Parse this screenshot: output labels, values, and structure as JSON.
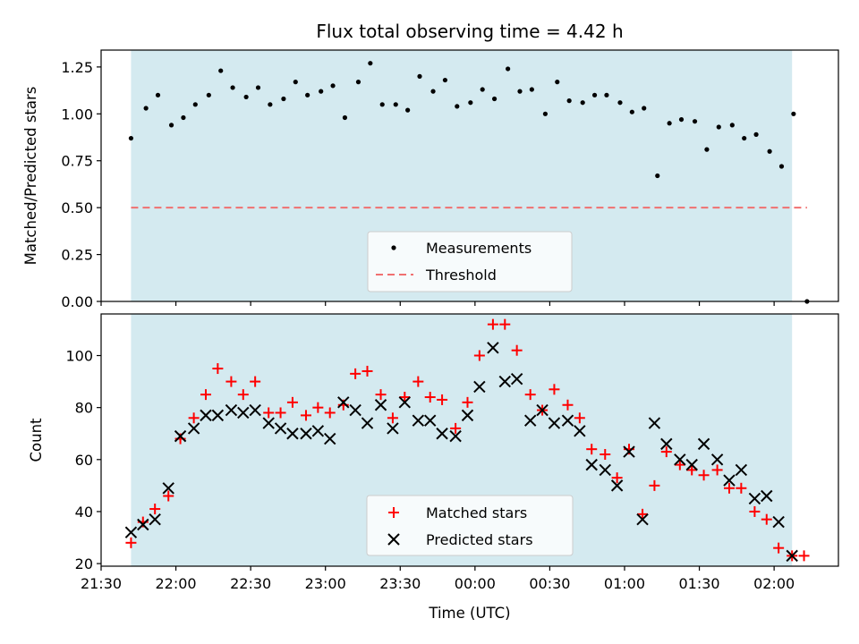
{
  "chart_data": [
    {
      "type": "scatter",
      "title": "Flux total observing time = 4.42 h",
      "ylabel": "Matched/Predicted stars",
      "ylim": [
        0,
        1.34
      ],
      "yticks": [
        "0.00",
        "0.25",
        "0.50",
        "0.75",
        "1.00",
        "1.25"
      ],
      "x_unit": "hours after 21:30 UTC",
      "observing_window": [
        0.2,
        4.62
      ],
      "window_color": "#d4eaf0",
      "threshold": 0.5,
      "series": [
        {
          "name": "Measurements",
          "color": "#000000",
          "marker": "dot",
          "x": [
            0.2,
            0.3,
            0.38,
            0.47,
            0.55,
            0.63,
            0.72,
            0.8,
            0.88,
            0.97,
            1.05,
            1.13,
            1.22,
            1.3,
            1.38,
            1.47,
            1.55,
            1.63,
            1.72,
            1.8,
            1.88,
            1.97,
            2.05,
            2.13,
            2.22,
            2.3,
            2.38,
            2.47,
            2.55,
            2.63,
            2.72,
            2.8,
            2.88,
            2.97,
            3.05,
            3.13,
            3.22,
            3.3,
            3.38,
            3.47,
            3.55,
            3.63,
            3.72,
            3.8,
            3.88,
            3.97,
            4.05,
            4.13,
            4.22,
            4.3,
            4.38,
            4.47,
            4.55,
            4.63,
            4.72
          ],
          "y": [
            0.87,
            1.03,
            1.1,
            0.94,
            0.98,
            1.05,
            1.1,
            1.23,
            1.14,
            1.09,
            1.14,
            1.05,
            1.08,
            1.17,
            1.1,
            1.12,
            1.15,
            0.98,
            1.17,
            1.27,
            1.05,
            1.05,
            1.02,
            1.2,
            1.12,
            1.18,
            1.04,
            1.06,
            1.13,
            1.08,
            1.24,
            1.12,
            1.13,
            1.0,
            1.17,
            1.07,
            1.06,
            1.1,
            1.1,
            1.06,
            1.01,
            1.03,
            0.67,
            0.95,
            0.97,
            0.96,
            0.81,
            0.93,
            0.94,
            0.87,
            0.89,
            0.8,
            0.72,
            1.0,
            0.0
          ]
        }
      ],
      "threshold_series": {
        "name": "Threshold",
        "color": "#f07070",
        "value": 0.5,
        "x_range": [
          0.2,
          4.72
        ]
      },
      "legend": {
        "placement": "lower-center",
        "entries": [
          "Measurements",
          "Threshold"
        ]
      }
    },
    {
      "type": "scatter",
      "xlabel": "Time (UTC)",
      "ylabel": "Count",
      "ylim": [
        19,
        116
      ],
      "yticks": [
        "20",
        "40",
        "60",
        "80",
        "100"
      ],
      "xticks": [
        "21:30",
        "22:00",
        "22:30",
        "23:00",
        "23:30",
        "00:00",
        "00:30",
        "01:00",
        "01:30",
        "02:00"
      ],
      "x_unit": "hours after 21:30 UTC",
      "observing_window": [
        0.2,
        4.62
      ],
      "series": [
        {
          "name": "Matched stars",
          "color": "#ff0000",
          "marker": "plus",
          "x": [
            0.2,
            0.28,
            0.36,
            0.45,
            0.53,
            0.62,
            0.7,
            0.78,
            0.87,
            0.95,
            1.03,
            1.12,
            1.2,
            1.28,
            1.37,
            1.45,
            1.53,
            1.62,
            1.7,
            1.78,
            1.87,
            1.95,
            2.03,
            2.12,
            2.2,
            2.28,
            2.37,
            2.45,
            2.53,
            2.62,
            2.7,
            2.78,
            2.87,
            2.95,
            3.03,
            3.12,
            3.2,
            3.28,
            3.37,
            3.45,
            3.53,
            3.62,
            3.7,
            3.78,
            3.87,
            3.95,
            4.03,
            4.12,
            4.2,
            4.28,
            4.37,
            4.45,
            4.53,
            4.62,
            4.7
          ],
          "y": [
            28,
            36,
            41,
            46,
            68,
            76,
            85,
            95,
            90,
            85,
            90,
            78,
            78,
            82,
            77,
            80,
            78,
            81,
            93,
            94,
            85,
            76,
            84,
            90,
            84,
            83,
            72,
            82,
            100,
            112,
            112,
            102,
            85,
            79,
            87,
            81,
            76,
            64,
            62,
            53,
            64,
            39,
            50,
            63,
            58,
            56,
            54,
            56,
            49,
            49,
            40,
            37,
            26,
            23,
            23
          ]
        },
        {
          "name": "Predicted stars",
          "color": "#000000",
          "marker": "x",
          "x": [
            0.2,
            0.28,
            0.36,
            0.45,
            0.53,
            0.62,
            0.7,
            0.78,
            0.87,
            0.95,
            1.03,
            1.12,
            1.2,
            1.28,
            1.37,
            1.45,
            1.53,
            1.62,
            1.7,
            1.78,
            1.87,
            1.95,
            2.03,
            2.12,
            2.2,
            2.28,
            2.37,
            2.45,
            2.53,
            2.62,
            2.7,
            2.78,
            2.87,
            2.95,
            3.03,
            3.12,
            3.2,
            3.28,
            3.37,
            3.45,
            3.53,
            3.62,
            3.7,
            3.78,
            3.87,
            3.95,
            4.03,
            4.12,
            4.2,
            4.28,
            4.37,
            4.45,
            4.53,
            4.62
          ],
          "y": [
            32,
            35,
            37,
            49,
            69,
            72,
            77,
            77,
            79,
            78,
            79,
            74,
            72,
            70,
            70,
            71,
            68,
            82,
            79,
            74,
            81,
            72,
            82,
            75,
            75,
            70,
            69,
            77,
            88,
            103,
            90,
            91,
            75,
            79,
            74,
            75,
            71,
            58,
            56,
            50,
            63,
            37,
            74,
            66,
            60,
            58,
            66,
            60,
            52,
            56,
            45,
            46,
            36,
            23
          ]
        }
      ],
      "legend": {
        "placement": "lower-center",
        "entries": [
          "Matched stars",
          "Predicted stars"
        ]
      }
    }
  ]
}
